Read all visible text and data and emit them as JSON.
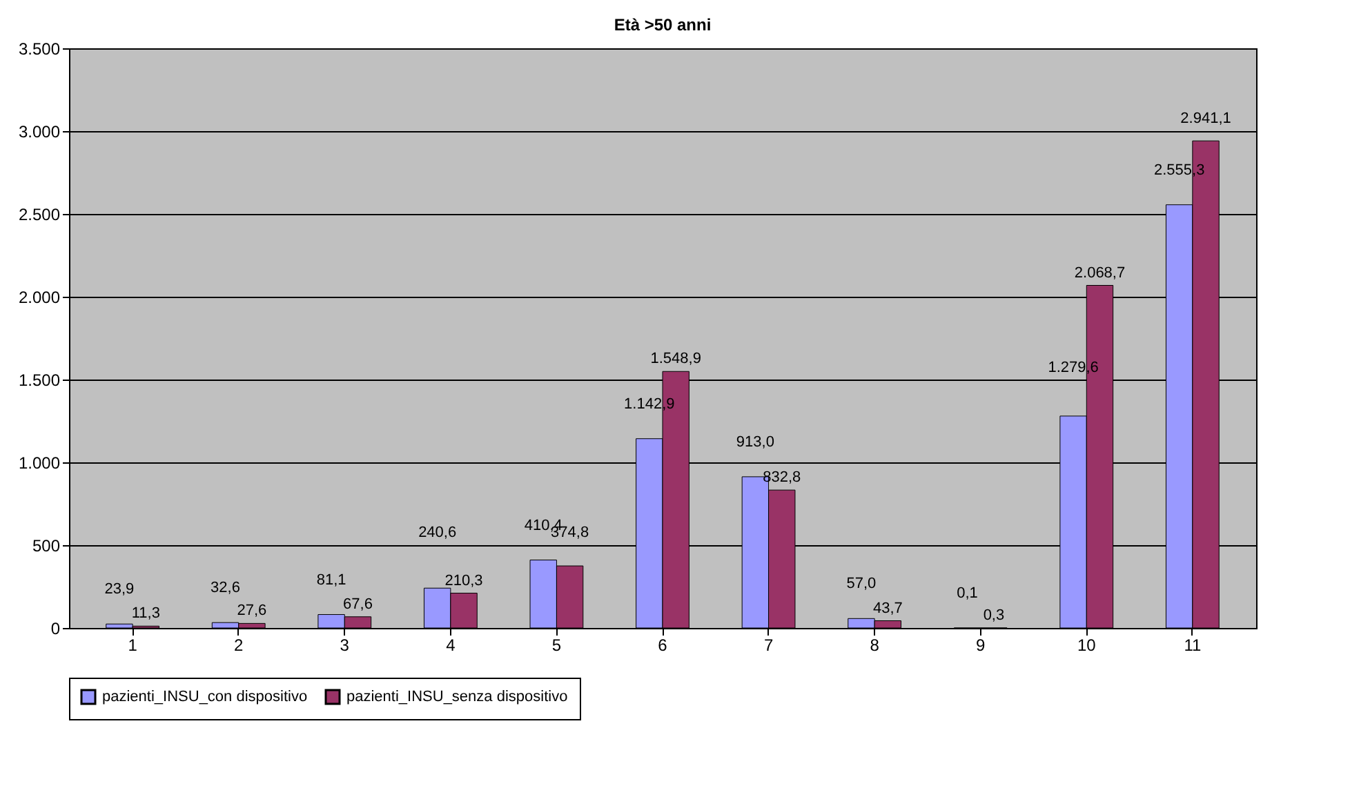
{
  "chart_data": {
    "type": "bar",
    "title": "Età >50 anni",
    "categories": [
      "1",
      "2",
      "3",
      "4",
      "5",
      "6",
      "7",
      "8",
      "9",
      "10",
      "11"
    ],
    "series": [
      {
        "name": "pazienti_INSU_con dispositivo",
        "color": "#9999ff",
        "values": [
          23.9,
          32.6,
          81.1,
          240.6,
          410.4,
          1142.9,
          913.0,
          57.0,
          0.1,
          1279.6,
          2555.3
        ],
        "value_labels": [
          "23,9",
          "32,6",
          "81,1",
          "240,6",
          "410,4",
          "1.142,9",
          "913,0",
          "57,0",
          "0,1",
          "1.279,6",
          "2.555,3"
        ]
      },
      {
        "name": "pazienti_INSU_senza dispositivo",
        "color": "#993366",
        "values": [
          11.3,
          27.6,
          67.6,
          210.3,
          374.8,
          1548.9,
          832.8,
          43.7,
          0.3,
          2068.7,
          2941.1
        ],
        "value_labels": [
          "11,3",
          "27,6",
          "67,6",
          "210,3",
          "374,8",
          "1.548,9",
          "832,8",
          "43,7",
          "0,3",
          "2.068,7",
          "2.941,1"
        ]
      }
    ],
    "ylim": [
      0,
      3500
    ],
    "yticks": [
      {
        "value": 0,
        "label": "0"
      },
      {
        "value": 500,
        "label": "500"
      },
      {
        "value": 1000,
        "label": "1.000"
      },
      {
        "value": 1500,
        "label": "1.500"
      },
      {
        "value": 2000,
        "label": "2.000"
      },
      {
        "value": 2500,
        "label": "2.500"
      },
      {
        "value": 3000,
        "label": "3.000"
      },
      {
        "value": 3500,
        "label": "3.500"
      }
    ],
    "grid": "y",
    "legend": "bottom"
  }
}
